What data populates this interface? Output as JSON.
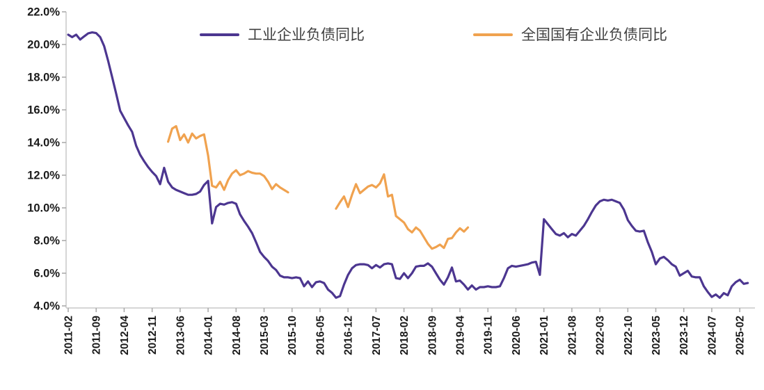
{
  "chart_data": {
    "type": "line",
    "title": "",
    "xlabel": "",
    "ylabel": "",
    "grid": false,
    "legend_position": "top",
    "y_axis": {
      "min": 4.0,
      "max": 22.0,
      "step": 2.0,
      "labels": [
        "22.0%",
        "20.0%",
        "18.0%",
        "16.0%",
        "14.0%",
        "12.0%",
        "10.0%",
        "8.0%",
        "6.0%",
        "4.0%"
      ]
    },
    "x_axis": {
      "tick_interval_months": 7,
      "tick_labels": [
        "2011-02",
        "2011-09",
        "2012-04",
        "2012-11",
        "2013-06",
        "2014-01",
        "2014-08",
        "2015-03",
        "2015-10",
        "2016-05",
        "2016-12",
        "2017-07",
        "2018-02",
        "2018-09",
        "2019-04",
        "2019-11",
        "2020-06",
        "2021-01",
        "2021-08",
        "2022-03",
        "2022-10",
        "2023-05",
        "2023-12",
        "2024-07",
        "2025-02"
      ]
    },
    "series": [
      {
        "name": "工业企业负债同比",
        "color": "#4C3690",
        "unit": "%",
        "start": "2011-02",
        "values": [
          20.6,
          20.45,
          20.6,
          20.3,
          20.5,
          20.68,
          20.74,
          20.7,
          20.45,
          19.9,
          19.0,
          18.0,
          17.0,
          15.95,
          15.5,
          15.05,
          14.65,
          13.8,
          13.25,
          12.85,
          12.5,
          12.2,
          11.95,
          11.45,
          12.45,
          11.6,
          11.25,
          11.1,
          11.0,
          10.9,
          10.8,
          10.8,
          10.85,
          11.0,
          11.4,
          11.65,
          9.05,
          10.05,
          10.25,
          10.2,
          10.3,
          10.35,
          10.25,
          9.6,
          9.2,
          8.85,
          8.45,
          7.9,
          7.3,
          7.0,
          6.75,
          6.4,
          6.2,
          5.85,
          5.75,
          5.75,
          5.7,
          5.75,
          5.7,
          5.2,
          5.5,
          5.15,
          5.45,
          5.5,
          5.4,
          5.0,
          4.8,
          4.5,
          4.6,
          5.3,
          5.9,
          6.3,
          6.5,
          6.55,
          6.55,
          6.5,
          6.3,
          6.5,
          6.35,
          6.55,
          6.6,
          6.55,
          5.7,
          5.65,
          6.0,
          5.7,
          6.0,
          6.4,
          6.45,
          6.45,
          6.6,
          6.4,
          6.0,
          5.6,
          5.3,
          5.75,
          6.35,
          5.5,
          5.55,
          5.3,
          5.0,
          5.25,
          5.0,
          5.15,
          5.15,
          5.2,
          5.15,
          5.15,
          5.2,
          5.7,
          6.3,
          6.45,
          6.4,
          6.45,
          6.5,
          6.55,
          6.65,
          6.7,
          5.9,
          9.3,
          9.0,
          8.7,
          8.4,
          8.3,
          8.45,
          8.2,
          8.4,
          8.3,
          8.6,
          8.9,
          9.3,
          9.75,
          10.15,
          10.4,
          10.5,
          10.45,
          10.5,
          10.4,
          10.3,
          9.9,
          9.25,
          8.9,
          8.6,
          8.55,
          8.6,
          7.9,
          7.3,
          6.55,
          6.9,
          7.0,
          6.8,
          6.55,
          6.4,
          5.85,
          6.0,
          6.15,
          5.8,
          5.75,
          5.75,
          5.2,
          4.85,
          4.55,
          4.7,
          4.5,
          4.78,
          4.65,
          5.2,
          5.45,
          5.6,
          5.35,
          5.4
        ]
      },
      {
        "name": "全国国有企业负债同比",
        "color": "#F0A24F",
        "unit": "%",
        "start": "2013-03",
        "values": [
          14.05,
          14.85,
          15.0,
          14.15,
          14.5,
          14.0,
          14.55,
          14.25,
          14.4,
          14.5,
          13.2,
          11.35,
          11.25,
          11.6,
          11.1,
          11.7,
          12.1,
          12.3,
          12.0,
          12.1,
          12.25,
          12.15,
          12.1,
          12.1,
          11.95,
          11.6,
          11.15,
          11.45,
          11.25,
          11.1,
          10.95,
          null,
          null,
          null,
          null,
          null,
          null,
          null,
          null,
          null,
          null,
          null,
          9.95,
          10.35,
          10.7,
          10.05,
          10.8,
          11.45,
          10.9,
          11.1,
          11.3,
          11.4,
          11.25,
          11.5,
          12.05,
          10.7,
          10.8,
          9.5,
          9.3,
          9.1,
          8.7,
          8.5,
          8.8,
          8.6,
          8.2,
          7.8,
          7.5,
          7.6,
          7.75,
          7.55,
          8.1,
          8.15,
          8.5,
          8.75,
          8.55,
          8.8
        ]
      }
    ],
    "colors": {
      "axis_line": "#c9c9c9",
      "tick_mark": "#a6a6a6",
      "axis_text": "#1a1a1a"
    }
  }
}
